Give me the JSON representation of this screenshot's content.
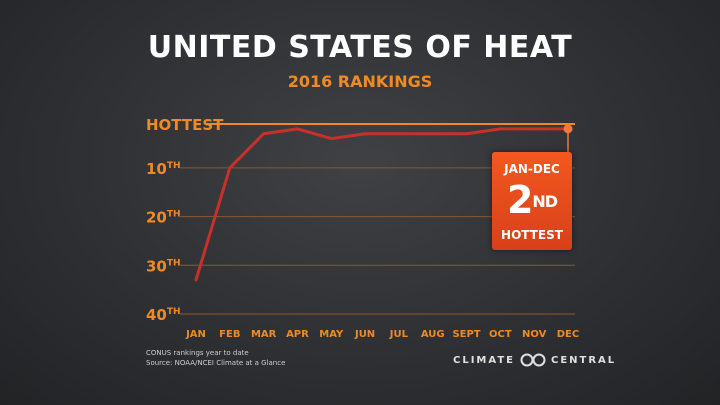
{
  "chart_data": {
    "type": "line",
    "title": "UNITED STATES OF HEAT",
    "subtitle": "2016 RANKINGS",
    "categories": [
      "JAN",
      "FEB",
      "MAR",
      "APR",
      "MAY",
      "JUN",
      "JUL",
      "AUG",
      "SEPT",
      "OCT",
      "NOV",
      "DEC"
    ],
    "series": [
      {
        "name": "CONUS ranking year to date",
        "values": [
          33,
          10,
          3,
          2,
          4,
          3,
          3,
          3,
          3,
          2,
          2,
          2
        ]
      }
    ],
    "yticks": [
      {
        "value": 1,
        "label": "HOTTEST",
        "sup": ""
      },
      {
        "value": 10,
        "label": "10",
        "sup": "TH"
      },
      {
        "value": 20,
        "label": "20",
        "sup": "TH"
      },
      {
        "value": 30,
        "label": "30",
        "sup": "TH"
      },
      {
        "value": 40,
        "label": "40",
        "sup": "TH"
      }
    ],
    "ylim": [
      1,
      40
    ],
    "y_inverted": true,
    "grid": true,
    "annotation": {
      "top": "JAN-DEC",
      "rank": "2",
      "rank_sup": "ND",
      "bottom": "HOTTEST"
    },
    "colors": {
      "line": "#c8302a",
      "accent": "#f08a24",
      "grid": "#8a5a30",
      "marker": "#f07a3a"
    }
  },
  "footnotes": [
    "CONUS rankings year to date",
    "Source: NOAA/NCEI Climate at a Glance"
  ],
  "brand": {
    "left": "CLIMATE",
    "right": "CENTRAL"
  }
}
